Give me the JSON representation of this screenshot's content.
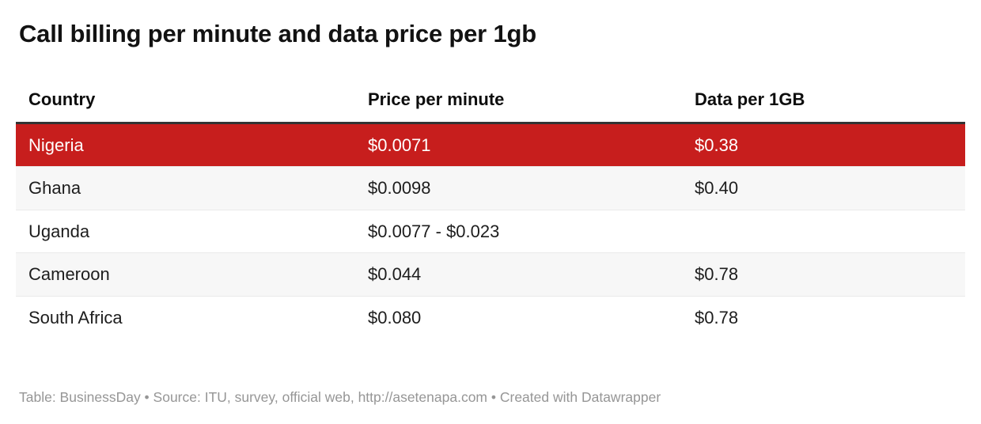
{
  "title": "Call billing per minute and data price per 1gb",
  "table": {
    "columns": [
      "Country",
      "Price per minute",
      "Data per 1GB"
    ],
    "rows": [
      {
        "country": "Nigeria",
        "price_per_minute": "$0.0071",
        "data_per_1gb": "$0.38"
      },
      {
        "country": "Ghana",
        "price_per_minute": "$0.0098",
        "data_per_1gb": "$0.40"
      },
      {
        "country": "Uganda",
        "price_per_minute": "$0.0077 - $0.023",
        "data_per_1gb": ""
      },
      {
        "country": "Cameroon",
        "price_per_minute": "$0.044",
        "data_per_1gb": "$0.78"
      },
      {
        "country": "South Africa",
        "price_per_minute": "$0.080",
        "data_per_1gb": "$0.78"
      }
    ],
    "highlighted_row": "Nigeria"
  },
  "footer": {
    "credit": "Table: BusinessDay • Source: ITU, survey, official web, http://asetenapa.com • Created with Datawrapper"
  },
  "colors": {
    "highlight_row_bg": "#c71e1d",
    "highlight_row_text": "#ffffff",
    "stripe_bg": "#f7f7f7",
    "header_border": "#333333",
    "body_text": "#1d1d1d",
    "footer_text": "#969696"
  },
  "chart_data": {
    "type": "table",
    "title": "Call billing per minute and data price per 1gb",
    "columns": [
      "Country",
      "Price per minute",
      "Data per 1GB"
    ],
    "rows": [
      [
        "Nigeria",
        "$0.0071",
        "$0.38"
      ],
      [
        "Ghana",
        "$0.0098",
        "$0.40"
      ],
      [
        "Uganda",
        "$0.0077 - $0.023",
        ""
      ],
      [
        "Cameroon",
        "$0.044",
        "$0.78"
      ],
      [
        "South Africa",
        "$0.080",
        "$0.78"
      ]
    ],
    "highlighted_row": "Nigeria",
    "source_note": "Table: BusinessDay • Source: ITU, survey, official web, http://asetenapa.com • Created with Datawrapper"
  }
}
